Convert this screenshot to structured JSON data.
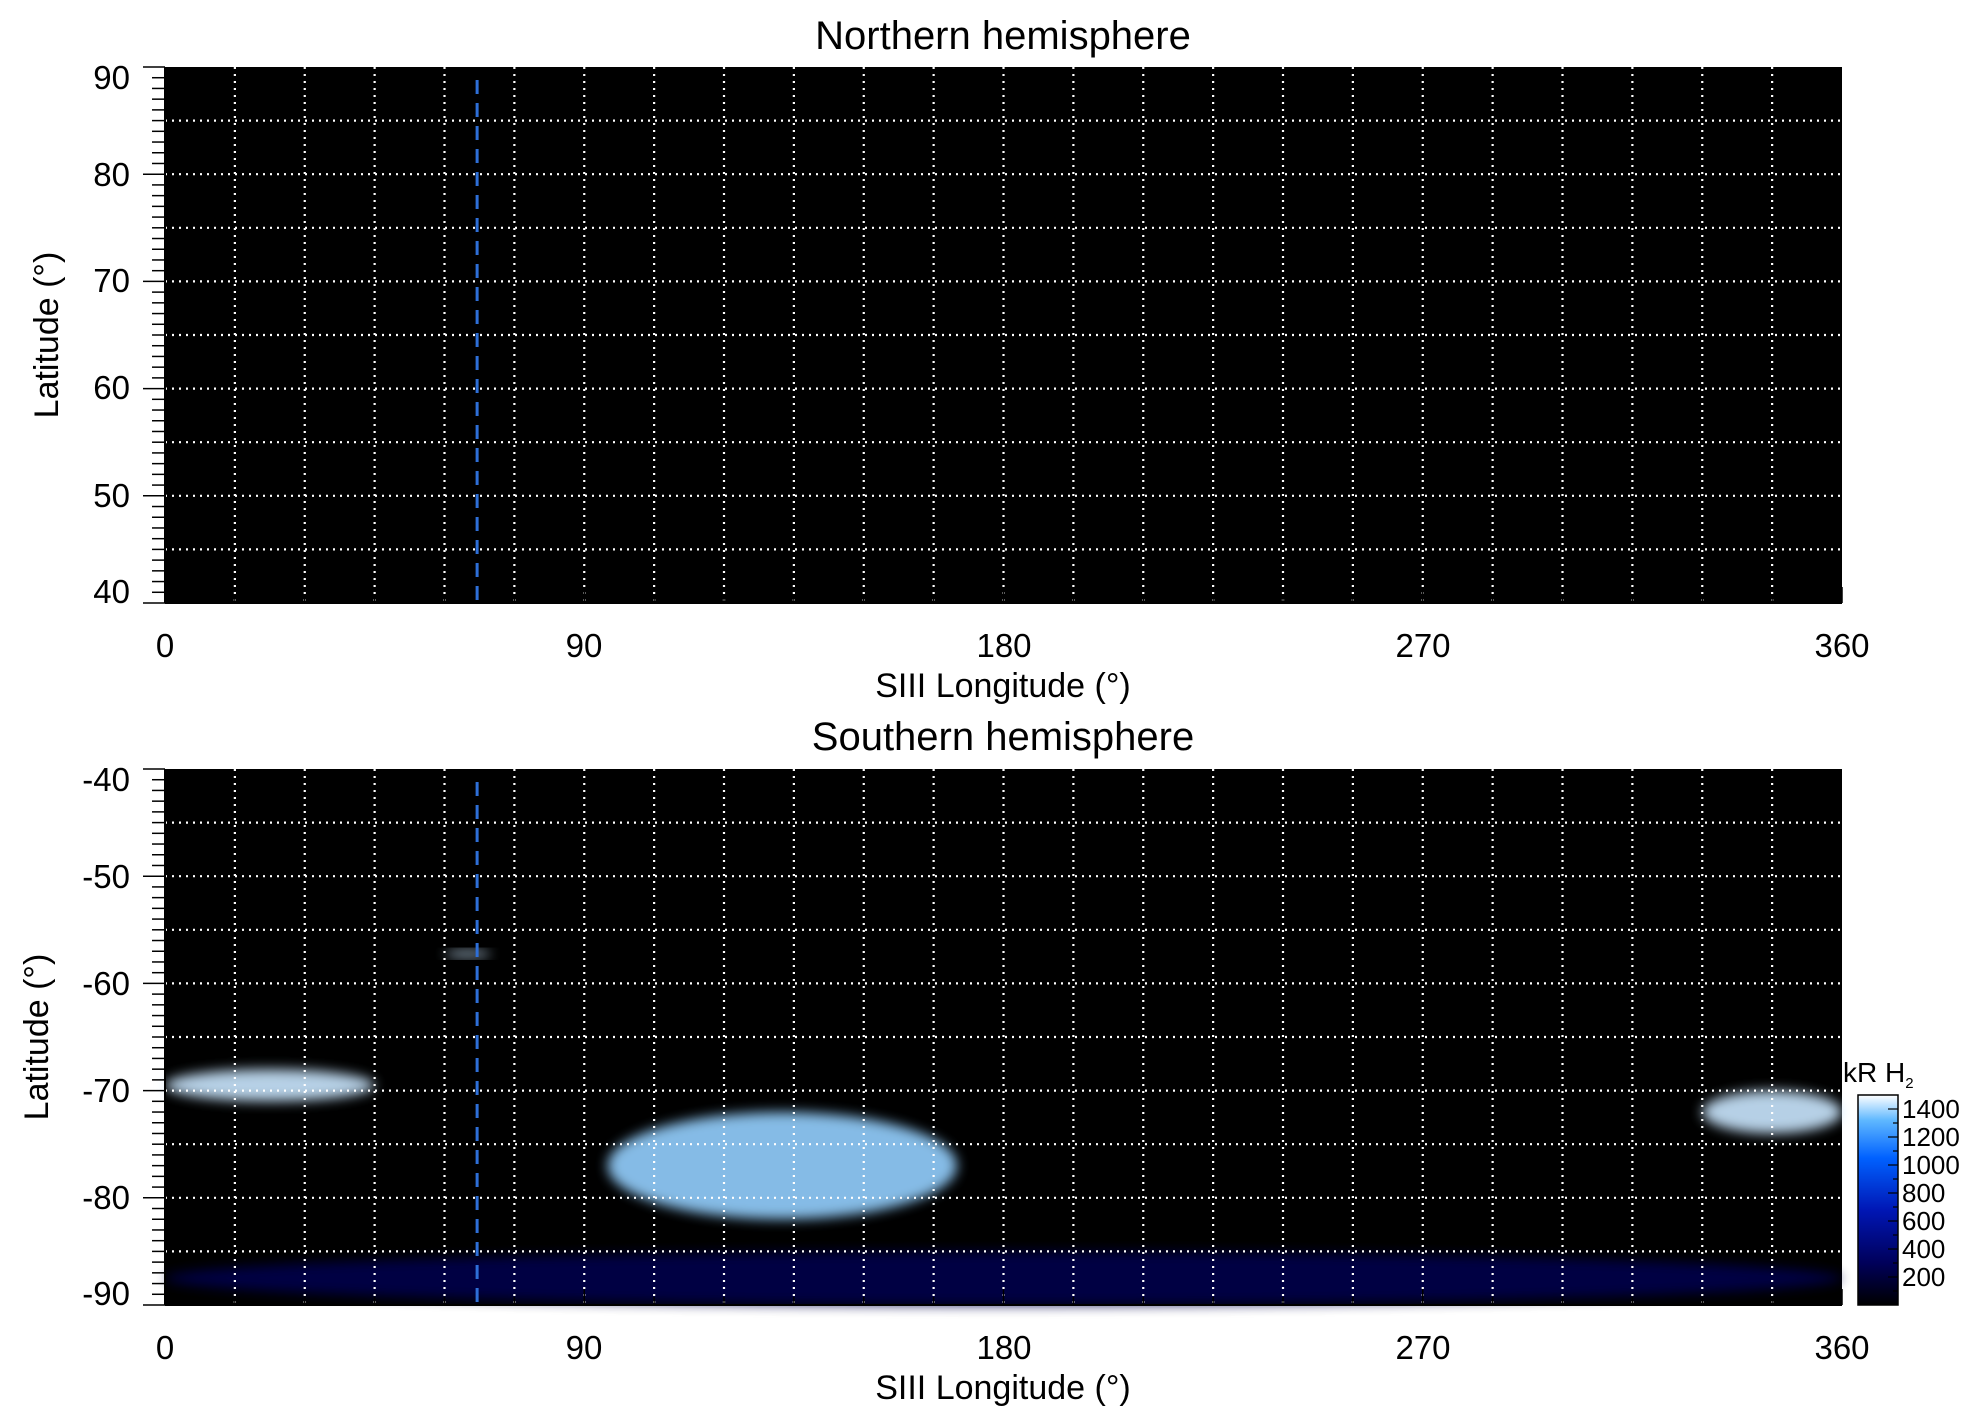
{
  "chart_data": [
    {
      "type": "heatmap",
      "title": "Northern hemisphere",
      "xlabel": "SIII Longitude (°)",
      "ylabel": "Latitude (°)",
      "xlim": [
        0,
        360
      ],
      "ylim": [
        40,
        90
      ],
      "xticks": [
        "0",
        "90",
        "180",
        "270",
        "360"
      ],
      "yticks": [
        "90",
        "80",
        "70",
        "60",
        "50",
        "40"
      ],
      "grid": true,
      "grid_x_step": 15,
      "grid_y_step": 5,
      "marker_longitude": 67,
      "marker_color": "#2e6fd8",
      "emission": []
    },
    {
      "type": "heatmap",
      "title": "Southern hemisphere",
      "xlabel": "SIII Longitude (°)",
      "ylabel": "Latitude (°)",
      "xlim": [
        0,
        360
      ],
      "ylim": [
        -90,
        -40
      ],
      "xticks": [
        "0",
        "90",
        "180",
        "270",
        "360"
      ],
      "yticks": [
        "-40",
        "-50",
        "-60",
        "-70",
        "-80",
        "-90"
      ],
      "grid": true,
      "grid_x_step": 15,
      "grid_y_step": 5,
      "marker_longitude": 67,
      "marker_color": "#2e6fd8",
      "emission": [
        {
          "lon": [
            0,
            45
          ],
          "lat": [
            -71,
            -68
          ],
          "level": 1400
        },
        {
          "lon": [
            60,
            70
          ],
          "lat": [
            -57.5,
            -57
          ],
          "level": 1400
        },
        {
          "lon": [
            95,
            170
          ],
          "lat": [
            -82,
            -72
          ],
          "level": 1300
        },
        {
          "lon": [
            330,
            360
          ],
          "lat": [
            -74,
            -70
          ],
          "level": 1400
        },
        {
          "lon": [
            0,
            360
          ],
          "lat": [
            -90,
            -85
          ],
          "level": 250
        }
      ],
      "colorbar": {
        "label_main": "kR H",
        "label_sub": "2",
        "ticks": [
          "1400",
          "1200",
          "1000",
          "800",
          "600",
          "400",
          "200"
        ],
        "tick_values": [
          1400,
          1200,
          1000,
          800,
          600,
          400,
          200
        ],
        "range": [
          0,
          1500
        ],
        "colors": [
          "#000000",
          "#00005a",
          "#0016b4",
          "#0061ff",
          "#5fb8ff",
          "#ffffff"
        ]
      }
    }
  ]
}
